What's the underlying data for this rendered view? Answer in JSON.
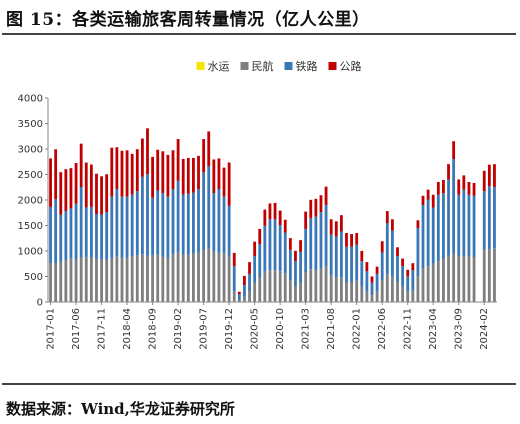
{
  "title": "图 15：各类运输旅客周转量情况（亿人公里）",
  "source": "数据来源：Wind,华龙证券研究所",
  "chart_data": {
    "type": "bar",
    "stacked": true,
    "title": "",
    "xlabel": "",
    "ylabel": "",
    "ylim": [
      0,
      4000
    ],
    "yticks": [
      0,
      500,
      1000,
      1500,
      2000,
      2500,
      3000,
      3500,
      4000
    ],
    "grid": false,
    "legend_position": "top-center",
    "xtick_labels": [
      "2017-01",
      "2017-06",
      "2017-11",
      "2018-04",
      "2018-09",
      "2019-02",
      "2019-07",
      "2019-12",
      "2020-05",
      "2020-10",
      "2021-03",
      "2021-08",
      "2022-01",
      "2022-06",
      "2022-11",
      "2023-04",
      "2023-09",
      "2024-02"
    ],
    "xtick_positions": [
      0,
      5,
      10,
      15,
      20,
      25,
      30,
      35,
      40,
      45,
      50,
      55,
      60,
      65,
      70,
      75,
      80,
      85
    ],
    "categories": [
      "2017-01",
      "2017-02",
      "2017-03",
      "2017-04",
      "2017-05",
      "2017-06",
      "2017-07",
      "2017-08",
      "2017-09",
      "2017-10",
      "2017-11",
      "2017-12",
      "2018-01",
      "2018-02",
      "2018-03",
      "2018-04",
      "2018-05",
      "2018-06",
      "2018-07",
      "2018-08",
      "2018-09",
      "2018-10",
      "2018-11",
      "2018-12",
      "2019-01",
      "2019-02",
      "2019-03",
      "2019-04",
      "2019-05",
      "2019-06",
      "2019-07",
      "2019-08",
      "2019-09",
      "2019-10",
      "2019-11",
      "2019-12",
      "2020-01",
      "2020-02",
      "2020-03",
      "2020-04",
      "2020-05",
      "2020-06",
      "2020-07",
      "2020-08",
      "2020-09",
      "2020-10",
      "2020-11",
      "2020-12",
      "2021-01",
      "2021-02",
      "2021-03",
      "2021-04",
      "2021-05",
      "2021-06",
      "2021-07",
      "2021-08",
      "2021-09",
      "2021-10",
      "2021-11",
      "2021-12",
      "2022-01",
      "2022-02",
      "2022-03",
      "2022-04",
      "2022-05",
      "2022-06",
      "2022-07",
      "2022-08",
      "2022-09",
      "2022-10",
      "2022-11",
      "2022-12",
      "2023-01",
      "2023-02",
      "2023-03",
      "2023-04",
      "2023-05",
      "2023-06",
      "2023-07",
      "2023-08",
      "2023-09",
      "2023-10",
      "2023-11",
      "2023-12",
      "2024-01",
      "2024-02",
      "2024-03",
      "2024-04"
    ],
    "series": [
      {
        "name": "水运",
        "color": "#f5e600",
        "values": [
          5,
          5,
          5,
          5,
          5,
          5,
          5,
          5,
          5,
          5,
          5,
          5,
          5,
          5,
          5,
          5,
          5,
          5,
          5,
          5,
          5,
          5,
          5,
          5,
          5,
          5,
          5,
          5,
          5,
          5,
          5,
          5,
          5,
          5,
          5,
          5,
          3,
          1,
          2,
          2,
          3,
          3,
          3,
          3,
          3,
          3,
          3,
          3,
          3,
          3,
          3,
          3,
          3,
          3,
          3,
          3,
          3,
          3,
          3,
          3,
          3,
          2,
          2,
          1,
          2,
          2,
          2,
          2,
          2,
          2,
          1,
          1,
          2,
          2,
          3,
          3,
          3,
          3,
          3,
          3,
          3,
          3,
          3,
          3,
          0,
          3,
          3,
          3
        ]
      },
      {
        "name": "民航",
        "color": "#7f7f7f",
        "values": [
          760,
          760,
          790,
          820,
          850,
          820,
          870,
          880,
          860,
          840,
          830,
          820,
          860,
          890,
          860,
          850,
          890,
          910,
          930,
          900,
          910,
          920,
          880,
          860,
          930,
          970,
          920,
          920,
          940,
          960,
          1020,
          1040,
          980,
          960,
          950,
          880,
          200,
          30,
          100,
          200,
          380,
          480,
          590,
          620,
          620,
          600,
          560,
          420,
          300,
          380,
          580,
          640,
          620,
          660,
          700,
          520,
          480,
          480,
          380,
          380,
          420,
          300,
          200,
          130,
          200,
          420,
          540,
          500,
          400,
          300,
          200,
          220,
          500,
          650,
          700,
          750,
          800,
          850,
          900,
          950,
          900,
          900,
          900,
          880,
          0,
          1020,
          1030,
          1050
        ]
      },
      {
        "name": "铁路",
        "color": "#3a77b7",
        "values": [
          1100,
          1250,
          920,
          960,
          980,
          1100,
          1380,
          970,
          1000,
          880,
          880,
          940,
          1200,
          1320,
          1200,
          1210,
          1210,
          1260,
          1520,
          1600,
          1130,
          1260,
          1250,
          1200,
          1280,
          1400,
          1180,
          1200,
          1200,
          1250,
          1520,
          1620,
          1150,
          1250,
          1110,
          1000,
          500,
          120,
          230,
          350,
          520,
          650,
          900,
          1000,
          1000,
          900,
          800,
          600,
          500,
          600,
          850,
          1000,
          1050,
          1100,
          1200,
          800,
          800,
          900,
          700,
          700,
          700,
          500,
          400,
          250,
          350,
          550,
          1000,
          900,
          500,
          400,
          300,
          400,
          950,
          1250,
          1300,
          1100,
          1300,
          1280,
          1500,
          1850,
          1200,
          1300,
          1200,
          1200,
          0,
          1150,
          1240,
          1200
        ]
      },
      {
        "name": "公路",
        "color": "#c00000",
        "values": [
          950,
          980,
          830,
          820,
          790,
          800,
          850,
          880,
          830,
          790,
          750,
          740,
          960,
          820,
          900,
          910,
          800,
          820,
          750,
          900,
          800,
          800,
          820,
          820,
          760,
          820,
          700,
          700,
          680,
          650,
          650,
          680,
          660,
          600,
          570,
          850,
          260,
          50,
          180,
          230,
          280,
          300,
          320,
          310,
          320,
          290,
          250,
          230,
          200,
          230,
          340,
          360,
          350,
          330,
          360,
          300,
          300,
          320,
          270,
          250,
          230,
          200,
          180,
          120,
          140,
          220,
          240,
          220,
          170,
          150,
          130,
          140,
          150,
          180,
          200,
          250,
          250,
          260,
          300,
          350,
          300,
          280,
          250,
          250,
          0,
          400,
          420,
          450
        ]
      }
    ]
  }
}
